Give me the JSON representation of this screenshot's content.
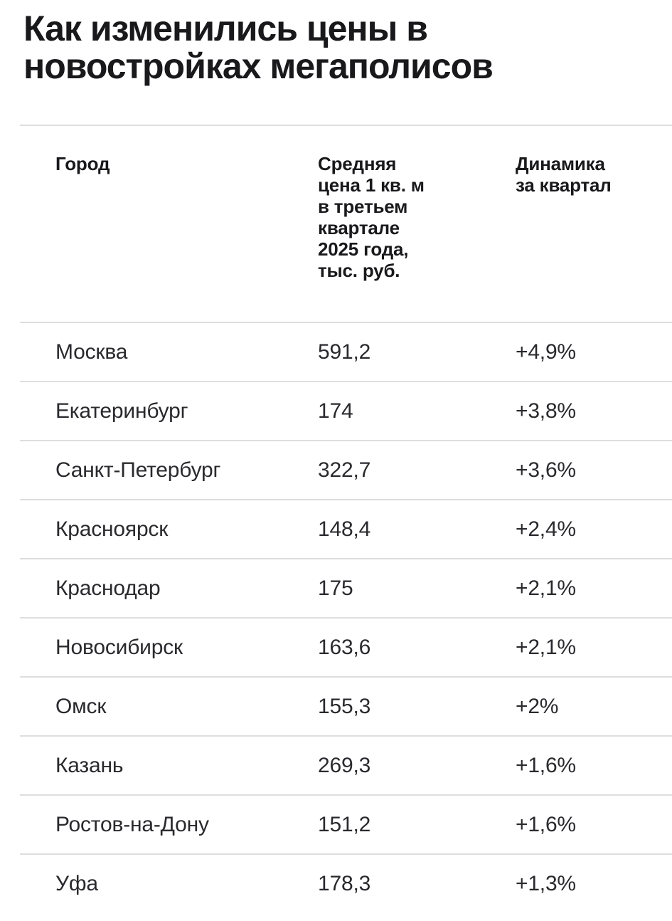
{
  "page": {
    "title": "Как изменились цены в\nновостройках мегаполисов"
  },
  "table": {
    "headers": {
      "city": "Город",
      "price": "Средняя\nцена 1 кв. м\nв третьем\nквартале\n2025 года,\nтыс. руб.",
      "dynamics": "Динамика\nза квартал"
    },
    "rows": [
      {
        "city": "Москва",
        "price": "591,2",
        "dynamics": "+4,9%"
      },
      {
        "city": "Екатеринбург",
        "price": "174",
        "dynamics": "+3,8%"
      },
      {
        "city": "Санкт-Петербург",
        "price": "322,7",
        "dynamics": "+3,6%"
      },
      {
        "city": "Красноярск",
        "price": "148,4",
        "dynamics": "+2,4%"
      },
      {
        "city": "Краснодар",
        "price": "175",
        "dynamics": "+2,1%"
      },
      {
        "city": "Новосибирск",
        "price": "163,6",
        "dynamics": "+2,1%"
      },
      {
        "city": "Омск",
        "price": "155,3",
        "dynamics": "+2%"
      },
      {
        "city": "Казань",
        "price": "269,3",
        "dynamics": "+1,6%"
      },
      {
        "city": "Ростов-на-Дону",
        "price": "151,2",
        "dynamics": "+1,6%"
      },
      {
        "city": "Уфа",
        "price": "178,3",
        "dynamics": "+1,3%"
      }
    ]
  },
  "colors": {
    "background": "#ffffff",
    "heading": "#19191c",
    "text": "#2a2a2e",
    "divider": "#dedede"
  },
  "chart_data": {
    "type": "table",
    "title": "Как изменились цены в новостройках мегаполисов",
    "columns": [
      "Город",
      "Средняя цена 1 кв. м в третьем квартале 2025 года, тыс. руб.",
      "Динамика за квартал"
    ],
    "rows": [
      [
        "Москва",
        591.2,
        "+4,9%"
      ],
      [
        "Екатеринбург",
        174,
        "+3,8%"
      ],
      [
        "Санкт-Петербург",
        322.7,
        "+3,6%"
      ],
      [
        "Красноярск",
        148.4,
        "+2,4%"
      ],
      [
        "Краснодар",
        175,
        "+2,1%"
      ],
      [
        "Новосибирск",
        163.6,
        "+2,1%"
      ],
      [
        "Омск",
        155.3,
        "+2%"
      ],
      [
        "Казань",
        269.3,
        "+1,6%"
      ],
      [
        "Ростов-на-Дону",
        151.2,
        "+1,6%"
      ],
      [
        "Уфа",
        178.3,
        "+1,3%"
      ]
    ],
    "units": "тыс. руб. за 1 кв. м",
    "period": "III квартал 2025 года"
  }
}
